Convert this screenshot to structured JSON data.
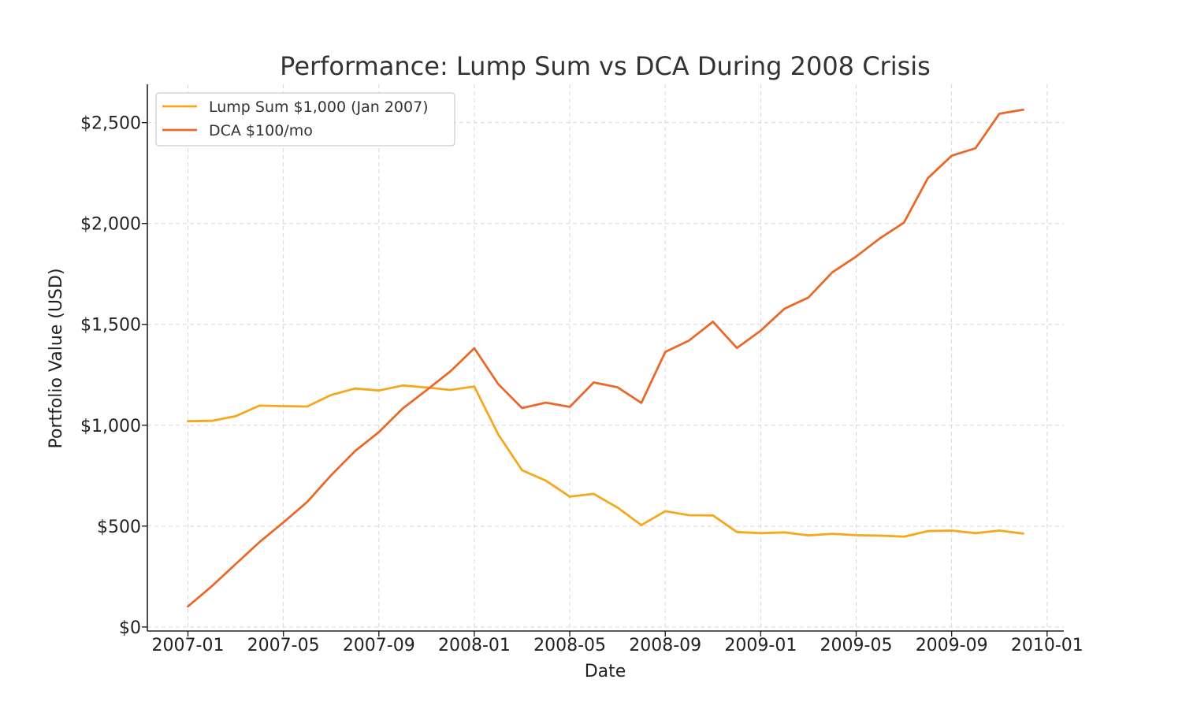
{
  "chart_data": {
    "type": "line",
    "title": "Performance: Lump Sum vs DCA During 2008 Crisis",
    "xlabel": "Date",
    "ylabel": "Portfolio Value (USD)",
    "x_ticks": [
      "2007-01",
      "2007-05",
      "2007-09",
      "2008-01",
      "2008-05",
      "2008-09",
      "2009-01",
      "2009-05",
      "2009-09",
      "2010-01"
    ],
    "y_ticks": [
      0,
      500,
      1000,
      1500,
      2000,
      2500
    ],
    "y_tick_labels": [
      "$0",
      "$500",
      "$1,000",
      "$1,500",
      "$2,000",
      "$2,500"
    ],
    "ylim": [
      -20,
      2690
    ],
    "xlim_months": [
      -1.7,
      36.7
    ],
    "grid": true,
    "legend_position": "top-left",
    "x": [
      "2007-01",
      "2007-02",
      "2007-03",
      "2007-04",
      "2007-05",
      "2007-06",
      "2007-07",
      "2007-08",
      "2007-09",
      "2007-10",
      "2007-11",
      "2007-12",
      "2008-01",
      "2008-02",
      "2008-03",
      "2008-04",
      "2008-05",
      "2008-06",
      "2008-07",
      "2008-08",
      "2008-09",
      "2008-10",
      "2008-11",
      "2008-12",
      "2009-01",
      "2009-02",
      "2009-03",
      "2009-04",
      "2009-05",
      "2009-06",
      "2009-07",
      "2009-08",
      "2009-09",
      "2009-10",
      "2009-11",
      "2009-12"
    ],
    "series": [
      {
        "name": "Lump Sum $1,000 (Jan 2007)",
        "color": "#f5a81c",
        "values": [
          1020,
          1022,
          1045,
          1097,
          1095,
          1093,
          1150,
          1182,
          1172,
          1197,
          1187,
          1175,
          1192,
          955,
          777,
          725,
          646,
          660,
          592,
          505,
          574,
          554,
          553,
          471,
          465,
          469,
          454,
          462,
          455,
          453,
          448,
          475,
          478,
          465,
          478,
          463
        ]
      },
      {
        "name": "DCA $100/mo",
        "color": "#e8692a",
        "values": [
          102,
          202,
          312,
          421,
          518,
          620,
          752,
          872,
          966,
          1083,
          1174,
          1267,
          1382,
          1204,
          1085,
          1112,
          1091,
          1212,
          1188,
          1111,
          1363,
          1420,
          1513,
          1383,
          1469,
          1578,
          1633,
          1758,
          1836,
          1927,
          2004,
          2224,
          2336,
          2373,
          2544,
          2564
        ]
      }
    ]
  }
}
